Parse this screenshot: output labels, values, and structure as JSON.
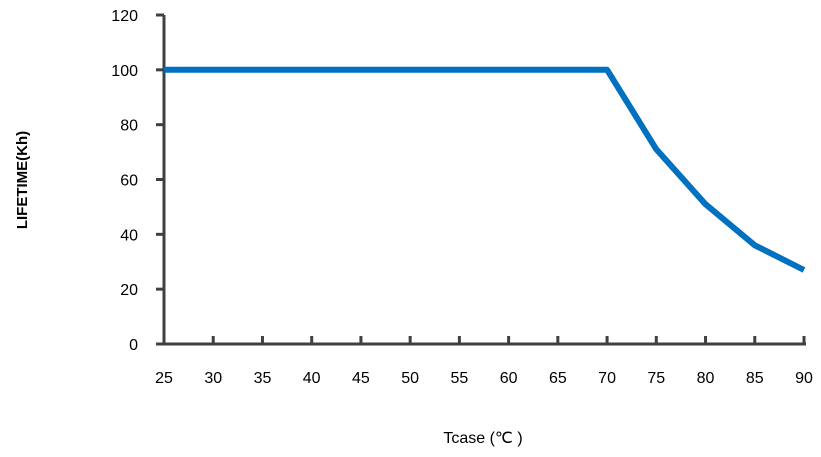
{
  "chart_data": {
    "type": "line",
    "xlabel": "Tcase (℃ )",
    "ylabel": "LIFETIME(Kh)",
    "x": [
      25,
      30,
      35,
      40,
      45,
      50,
      55,
      60,
      65,
      70,
      75,
      80,
      85,
      90
    ],
    "x_tick_labels": [
      "25",
      "30",
      "35",
      "40",
      "45",
      "50",
      "55",
      "60",
      "65",
      "70",
      "75",
      "80",
      "85",
      "90"
    ],
    "y_tick_labels": [
      "0",
      "20",
      "40",
      "60",
      "80",
      "100",
      "120"
    ],
    "xlim": [
      25,
      90
    ],
    "ylim": [
      0,
      120
    ],
    "grid": false,
    "series": [
      {
        "values": [
          100,
          100,
          100,
          100,
          100,
          100,
          100,
          100,
          100,
          100,
          71,
          51,
          36,
          27
        ],
        "color": "#0070c0"
      }
    ],
    "axis_color": "#404040"
  }
}
